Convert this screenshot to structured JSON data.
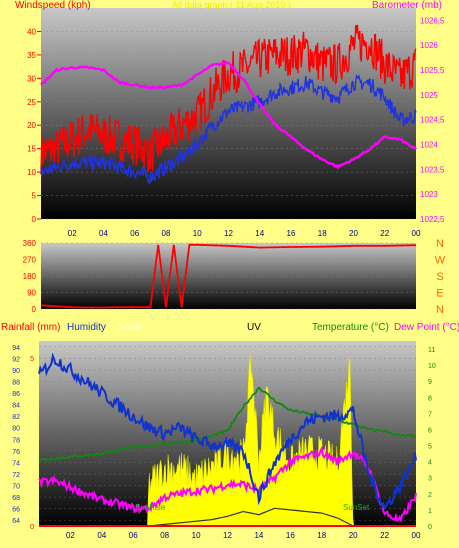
{
  "colors": {
    "background": "#ffff88",
    "gust": "#ff0000",
    "wind": "#2233dd",
    "pressure": "#ff00ff",
    "direction": "#ff0000",
    "rain": "#ff0000",
    "humidity": "#1133cc",
    "solar": "#ffff00",
    "uv": "#e8e800",
    "temperature": "#118811",
    "dewpoint": "#ff00ff",
    "sunpath": "#333333",
    "dir_labels": "#ff6600"
  },
  "top_panel": {
    "title_left": "Windspeed (kph)",
    "title_center": "All data graph (  11 Aug 2019 )",
    "title_right": "Barometer (mb)",
    "left_ticks": [
      "0",
      "5",
      "10",
      "15",
      "20",
      "25",
      "30",
      "35",
      "40"
    ],
    "right_ticks": [
      "1022,5",
      "1023",
      "1023,5",
      "1024",
      "1024,5",
      "1025",
      "1025,5",
      "1026",
      "1026,5"
    ]
  },
  "direction_panel": {
    "left_ticks": [
      "0",
      "90",
      "180",
      "270",
      "360"
    ],
    "compass": [
      "N",
      "W",
      "S",
      "E",
      "N"
    ]
  },
  "bottom_panel": {
    "rain_label": "Rainfall (mm)",
    "humidity_label": "Humidity",
    "solar_label": "Solar",
    "uv_label": "UV",
    "temp_label": "Temperature (°C)",
    "dew_label": "Dew Point (°C)",
    "sunrise": "SunRise",
    "sunset": "SunSet",
    "left_ticks": [
      "64",
      "66",
      "68",
      "70",
      "72",
      "74",
      "76",
      "78",
      "80",
      "82",
      "84",
      "86",
      "88",
      "90",
      "92",
      "94"
    ],
    "rain_ticks": [
      "0",
      "5"
    ],
    "right_ticks": [
      "0",
      "1",
      "2",
      "3",
      "4",
      "5",
      "6",
      "7",
      "8",
      "9",
      "10",
      "11"
    ]
  },
  "x_ticks": [
    "02",
    "04",
    "06",
    "08",
    "10",
    "12",
    "14",
    "16",
    "18",
    "20",
    "22",
    "00"
  ],
  "chart_data": [
    {
      "type": "line",
      "title": "All data graph (  11 Aug 2019 )",
      "x_unit": "hour",
      "series": [
        {
          "name": "Windspeed (kph)",
          "style": "gust",
          "x": [
            0,
            1,
            2,
            3,
            4,
            5,
            6,
            7,
            8,
            9,
            10,
            11,
            12,
            13,
            14,
            15,
            16,
            17,
            18,
            19,
            20,
            21,
            22,
            23,
            24
          ],
          "y": [
            14,
            15,
            17,
            19,
            18,
            17,
            16,
            14,
            17,
            20,
            22,
            27,
            31,
            32,
            34,
            35,
            35,
            36,
            33,
            33,
            37,
            38,
            33,
            30,
            33
          ]
        },
        {
          "name": "Windspeed (kph)",
          "style": "avg",
          "x": [
            0,
            1,
            2,
            3,
            4,
            5,
            6,
            7,
            8,
            9,
            10,
            11,
            12,
            13,
            14,
            15,
            16,
            17,
            18,
            19,
            20,
            21,
            22,
            23,
            24
          ],
          "y": [
            10,
            11,
            12,
            12,
            12,
            11,
            10,
            9,
            11,
            13,
            16,
            20,
            23,
            24,
            25,
            27,
            28,
            29,
            27,
            26,
            29,
            29,
            26,
            21,
            22
          ]
        },
        {
          "name": "Barometer (mb)",
          "axis": "right",
          "x": [
            0,
            1,
            2,
            3,
            4,
            5,
            6,
            7,
            8,
            9,
            10,
            11,
            12,
            13,
            14,
            15,
            16,
            17,
            18,
            19,
            20,
            21,
            22,
            23,
            24
          ],
          "y": [
            1025.2,
            1025.5,
            1025.55,
            1025.55,
            1025.5,
            1025.25,
            1025.2,
            1025.15,
            1025.15,
            1025.2,
            1025.4,
            1025.6,
            1025.65,
            1025.3,
            1024.8,
            1024.4,
            1024.15,
            1023.9,
            1023.7,
            1023.55,
            1023.7,
            1023.9,
            1024.15,
            1024.1,
            1023.9
          ]
        }
      ],
      "ylim": [
        0,
        45
      ],
      "y2lim": [
        1022.5,
        1026.75
      ]
    },
    {
      "type": "line",
      "x_unit": "hour",
      "series": [
        {
          "name": "Wind direction",
          "x": [
            0,
            1,
            2,
            3,
            4,
            5,
            6,
            7,
            7.5,
            8,
            8.5,
            9,
            9.5,
            10,
            12,
            14,
            16,
            18,
            20,
            22,
            24
          ],
          "y": [
            20,
            15,
            10,
            8,
            8,
            10,
            10,
            10,
            350,
            10,
            350,
            10,
            350,
            350,
            345,
            335,
            338,
            340,
            345,
            345,
            348
          ]
        }
      ],
      "ylim": [
        0,
        360
      ]
    },
    {
      "type": "line",
      "x_unit": "hour",
      "series": [
        {
          "name": "Humidity",
          "axis": "left",
          "x": [
            0,
            1,
            2,
            3,
            4,
            5,
            6,
            7,
            8,
            9,
            10,
            11,
            12,
            13,
            14,
            15,
            16,
            17,
            18,
            19,
            20,
            21,
            22,
            23,
            24
          ],
          "y": [
            89,
            92,
            90,
            88,
            86,
            84,
            82,
            80,
            79,
            80,
            78,
            77,
            77,
            76,
            68,
            74,
            78,
            81,
            82,
            82,
            83,
            72,
            66,
            70,
            75
          ]
        },
        {
          "name": "Temperature (°C)",
          "axis": "right",
          "x": [
            0,
            1,
            2,
            3,
            4,
            5,
            6,
            7,
            8,
            9,
            10,
            11,
            12,
            13,
            14,
            15,
            16,
            17,
            18,
            19,
            20,
            21,
            22,
            23,
            24
          ],
          "y": [
            4.1,
            4.2,
            4.3,
            4.4,
            4.5,
            4.7,
            4.9,
            5.0,
            5.1,
            5.2,
            5.3,
            5.6,
            5.9,
            7.4,
            8.6,
            7.8,
            7.2,
            7.0,
            6.8,
            6.6,
            6.3,
            6.0,
            5.9,
            5.6,
            5.6
          ]
        },
        {
          "name": "Dew Point (°C)",
          "axis": "right",
          "x": [
            0,
            1,
            2,
            3,
            4,
            5,
            6,
            7,
            8,
            9,
            10,
            11,
            12,
            13,
            14,
            15,
            16,
            17,
            18,
            19,
            20,
            21,
            22,
            23,
            24
          ],
          "y": [
            2.7,
            2.8,
            2.4,
            2.0,
            1.6,
            1.4,
            1.1,
            1.1,
            1.8,
            2.0,
            2.2,
            2.3,
            2.6,
            2.6,
            2.2,
            3.0,
            4.0,
            4.3,
            4.6,
            4.0,
            4.6,
            3.6,
            0.8,
            0.3,
            1.9
          ]
        },
        {
          "name": "Solar",
          "axis": "right",
          "x": [
            0,
            6.9,
            7.0,
            8,
            9,
            10,
            11,
            12,
            13,
            13.5,
            14,
            14.5,
            15,
            16,
            17,
            18,
            19,
            19.8,
            20.0,
            24
          ],
          "y": [
            0,
            0,
            2.6,
            3.6,
            3.7,
            3.0,
            3.7,
            4.6,
            4.3,
            10.3,
            4.2,
            8.4,
            5.9,
            4.0,
            4.7,
            4.5,
            3.9,
            10.3,
            0,
            0
          ]
        },
        {
          "name": "UV",
          "axis": "right",
          "x": [
            0,
            7,
            8,
            9,
            10,
            11,
            12,
            13,
            14,
            15,
            16,
            17,
            18,
            19,
            20,
            24
          ],
          "y": [
            0,
            0,
            0.1,
            0.2,
            0.3,
            0.4,
            0.6,
            0.9,
            0.7,
            1.1,
            1.0,
            0.9,
            0.8,
            0.5,
            0,
            0
          ]
        },
        {
          "name": "Rainfall (mm)",
          "axis": "rain",
          "x": [
            0,
            24
          ],
          "y": [
            0,
            0
          ]
        }
      ],
      "ylim": [
        63,
        95
      ],
      "y2lim": [
        0,
        11.5
      ],
      "y3lim": [
        0,
        5.5
      ]
    }
  ]
}
